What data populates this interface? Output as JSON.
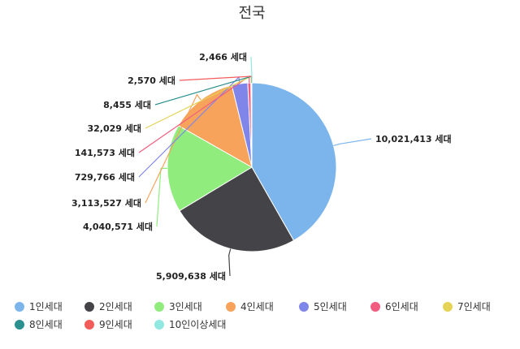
{
  "chart_data": {
    "type": "pie",
    "title": "전국",
    "unit": "세대",
    "series": [
      {
        "name": "1인세대",
        "value": 10021413,
        "label": "10,021,413 세대",
        "color": "#7cb5ec"
      },
      {
        "name": "2인세대",
        "value": 5909638,
        "label": "5,909,638 세대",
        "color": "#434348"
      },
      {
        "name": "3인세대",
        "value": 4040571,
        "label": "4,040,571 세대",
        "color": "#90ed7d"
      },
      {
        "name": "4인세대",
        "value": 3113527,
        "label": "3,113,527 세대",
        "color": "#f7a35c"
      },
      {
        "name": "5인세대",
        "value": 729766,
        "label": "729,766 세대",
        "color": "#8085e9"
      },
      {
        "name": "6인세대",
        "value": 141573,
        "label": "141,573 세대",
        "color": "#f15c80"
      },
      {
        "name": "7인세대",
        "value": 32029,
        "label": "32,029 세대",
        "color": "#e4d354"
      },
      {
        "name": "8인세대",
        "value": 8455,
        "label": "8,455 세대",
        "color": "#2b908f"
      },
      {
        "name": "9인세대",
        "value": 2570,
        "label": "2,570 세대",
        "color": "#f45b5b"
      },
      {
        "name": "10인이상세대",
        "value": 2466,
        "label": "2,466 세대",
        "color": "#91e8e1"
      }
    ],
    "legend_position": "bottom"
  }
}
